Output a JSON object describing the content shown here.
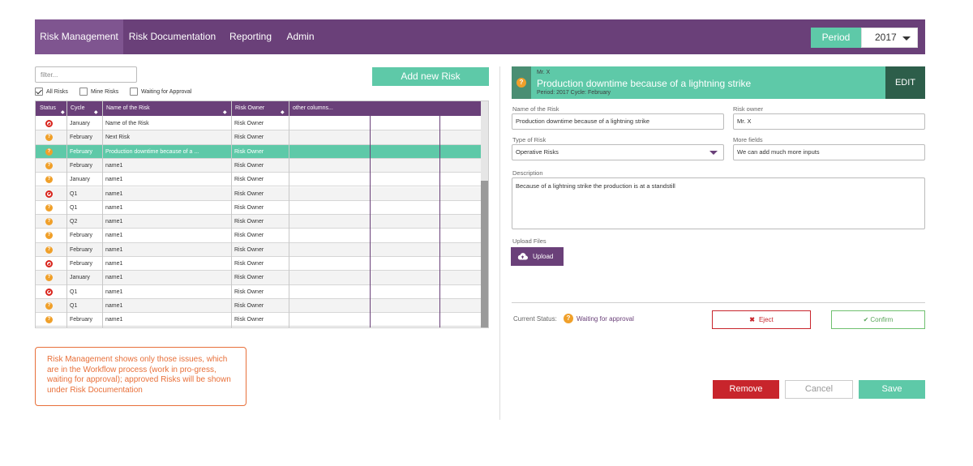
{
  "nav": {
    "tabs": [
      {
        "label": "Risk Management",
        "active": true
      },
      {
        "label": "Risk Documentation",
        "active": false
      },
      {
        "label": "Reporting",
        "active": false
      },
      {
        "label": "Admin",
        "active": false
      }
    ],
    "period_label": "Period",
    "period_value": "2017"
  },
  "list": {
    "filter_placeholder": "filter...",
    "checkboxes": [
      {
        "label": "All Risks",
        "checked": true
      },
      {
        "label": "Mine Risks",
        "checked": false
      },
      {
        "label": "Waiting for Approval",
        "checked": false
      }
    ],
    "add_button": "Add new Risk",
    "columns": [
      "Status",
      "Cycle",
      "Name of the Risk",
      "Risk Owner",
      "other columns..."
    ],
    "rows": [
      {
        "status": "stop",
        "cycle": "January",
        "name": "Name of the Risk",
        "owner": "Risk Owner"
      },
      {
        "status": "wait",
        "cycle": "February",
        "name": "Next Risk",
        "owner": "Risk Owner"
      },
      {
        "status": "wait",
        "cycle": "February",
        "name": "Production downtime because of a ...",
        "owner": "Risk Owner",
        "selected": true
      },
      {
        "status": "wait",
        "cycle": "February",
        "name": "name1",
        "owner": "Risk Owner"
      },
      {
        "status": "wait",
        "cycle": "January",
        "name": "name1",
        "owner": "Risk Owner"
      },
      {
        "status": "stop",
        "cycle": "Q1",
        "name": "name1",
        "owner": "Risk Owner"
      },
      {
        "status": "wait",
        "cycle": "Q1",
        "name": "name1",
        "owner": "Risk Owner"
      },
      {
        "status": "wait",
        "cycle": "Q2",
        "name": "name1",
        "owner": "Risk Owner"
      },
      {
        "status": "wait",
        "cycle": "February",
        "name": "name1",
        "owner": "Risk Owner"
      },
      {
        "status": "wait",
        "cycle": "February",
        "name": "name1",
        "owner": "Risk Owner"
      },
      {
        "status": "stop",
        "cycle": "February",
        "name": "name1",
        "owner": "Risk Owner"
      },
      {
        "status": "wait",
        "cycle": "January",
        "name": "name1",
        "owner": "Risk Owner"
      },
      {
        "status": "stop",
        "cycle": "Q1",
        "name": "name1",
        "owner": "Risk Owner"
      },
      {
        "status": "wait",
        "cycle": "Q1",
        "name": "name1",
        "owner": "Risk Owner"
      },
      {
        "status": "wait",
        "cycle": "February",
        "name": "name1",
        "owner": "Risk Owner"
      }
    ],
    "note": "Risk Management shows only those issues, which are in the Workflow process (work in pro-gress, waiting for approval); approved Risks will be shown under Risk Documentation"
  },
  "detail": {
    "owner_top": "Mr. X",
    "title": "Production downtime because of a lightning strike",
    "meta": "Period: 2017    Cycle: February",
    "edit_button": "EDIT",
    "fields": {
      "name_label": "Name of the Risk",
      "name_value": "Production downtime because of a lightning strike",
      "owner_label": "Risk owner",
      "owner_value": "Mr. X",
      "type_label": "Type of Risk",
      "type_value": "Operative Risks",
      "more_label": "More fields",
      "more_value": "We can add much more inputs",
      "desc_label": "Description",
      "desc_value": "Because of a lightning strike the production is at a standstill",
      "upload_label": "Upload Files",
      "upload_button": "Upload"
    },
    "status_label": "Current Status:",
    "status_value": "Waiting for approval",
    "eject_button": "Eject",
    "confirm_button": "Confirm",
    "remove_button": "Remove",
    "cancel_button": "Cancel",
    "save_button": "Save"
  },
  "colors": {
    "primary_purple": "#6a4079",
    "accent_green": "#5ec9a8",
    "danger_red": "#c8252c",
    "warning_orange": "#f0a02a",
    "note_orange": "#e8703a"
  }
}
